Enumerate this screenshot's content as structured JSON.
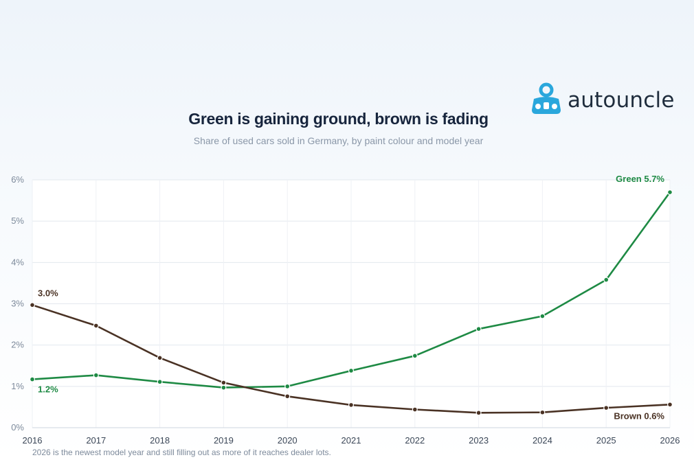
{
  "brand": {
    "name": "autouncle",
    "icon": "autouncle-person-car-icon",
    "color": "#2aa7dc"
  },
  "header": {
    "title": "Green is gaining ground, brown is fading",
    "subtitle": "Share of used cars sold in Germany, by paint colour and model year"
  },
  "footnote": "2026 is the newest model year and still filling out as more of it reaches dealer lots.",
  "chart_data": {
    "type": "line",
    "x": [
      2016,
      2017,
      2018,
      2019,
      2020,
      2021,
      2022,
      2023,
      2024,
      2025,
      2026
    ],
    "ylim": [
      0,
      6
    ],
    "yticks": [
      "0%",
      "1%",
      "2%",
      "3%",
      "4%",
      "5%",
      "6%"
    ],
    "xticks": [
      "2016",
      "2017",
      "2018",
      "2019",
      "2020",
      "2021",
      "2022",
      "2023",
      "2024",
      "2025",
      "2026"
    ],
    "grid": true,
    "series": [
      {
        "key": "green",
        "color": "#1e8a44",
        "values": [
          1.17,
          1.27,
          1.11,
          0.97,
          1.0,
          1.38,
          1.74,
          2.39,
          2.7,
          3.58,
          5.7
        ],
        "labels": [
          {
            "index": 0,
            "text": "1.2%"
          },
          {
            "index": 10,
            "text": "Green 5.7%"
          }
        ]
      },
      {
        "key": "brown",
        "color": "#4a3224",
        "values": [
          2.97,
          2.47,
          1.69,
          1.09,
          0.76,
          0.55,
          0.44,
          0.36,
          0.37,
          0.48,
          0.56
        ],
        "labels": [
          {
            "index": 0,
            "text": "3.0%"
          },
          {
            "index": 10,
            "text": "Brown 0.6%"
          }
        ]
      }
    ]
  }
}
